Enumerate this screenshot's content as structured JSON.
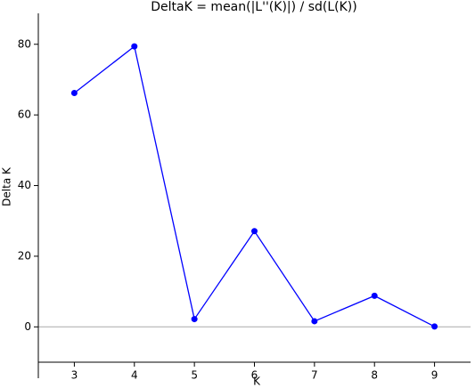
{
  "chart_data": {
    "type": "line",
    "title": "DeltaK = mean(|L''(K)|) / sd(L(K))",
    "x_label": "K",
    "y_label": "Delta K",
    "x": [
      3,
      4,
      5,
      6,
      7,
      8,
      9
    ],
    "series": [
      {
        "color": "#0000ff",
        "values": [
          66.2,
          79.4,
          2.2,
          27.1,
          1.6,
          8.8,
          0.1
        ]
      }
    ],
    "xlim": [
      2.4,
      9.6
    ],
    "xticks": [
      3,
      4,
      5,
      6,
      7,
      8,
      9
    ],
    "ylim": [
      -10,
      88
    ],
    "yticks": [
      0,
      20,
      40,
      60,
      80
    ],
    "zero_line": true,
    "markers": true
  }
}
